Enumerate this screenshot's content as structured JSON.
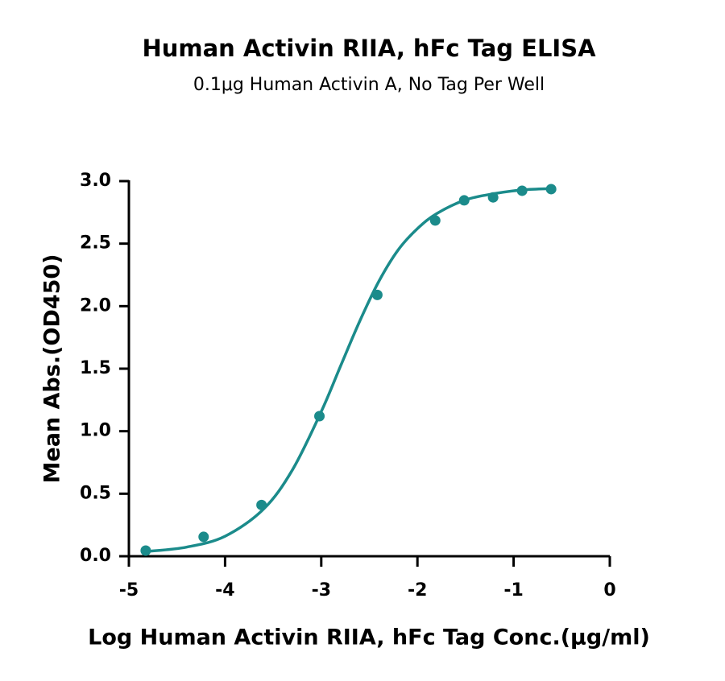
{
  "chart_data": {
    "type": "scatter",
    "title": "Human Activin RIIA, hFc Tag ELISA",
    "subtitle": "0.1μg Human Activin A, No Tag Per Well",
    "x_label": "Log Human Activin RIIA, hFc  Tag Conc.(μg/ml)",
    "y_label": "Mean Abs.(OD450)",
    "color": "#1b8b8b",
    "points": {
      "x": [
        -4.825,
        -4.223,
        -3.621,
        -3.019,
        -2.417,
        -1.815,
        -1.514,
        -1.213,
        -0.912,
        -0.61
      ],
      "values": [
        0.045,
        0.155,
        0.41,
        1.12,
        2.09,
        2.685,
        2.846,
        2.87,
        2.923,
        2.936
      ]
    },
    "fit": {
      "x": [
        -4.8,
        -4.4,
        -4.0,
        -3.6,
        -3.3,
        -3.0,
        -2.8,
        -2.6,
        -2.4,
        -2.2,
        -2.0,
        -1.8,
        -1.5,
        -1.2,
        -0.9,
        -0.6
      ],
      "values": [
        0.039,
        0.073,
        0.16,
        0.377,
        0.69,
        1.157,
        1.52,
        1.88,
        2.2,
        2.45,
        2.62,
        2.74,
        2.85,
        2.9,
        2.93,
        2.94
      ]
    },
    "xlim": [
      -5,
      0
    ],
    "xticks": [
      -5,
      -4,
      -3,
      -2,
      -1,
      0
    ],
    "ylim": [
      0,
      3
    ],
    "yticks": [
      {
        "value": 0,
        "label": "0.0"
      },
      0.5,
      {
        "value": 1,
        "label": "1.0"
      },
      1.5,
      {
        "value": 2,
        "label": "2.0"
      },
      2.5,
      {
        "value": 3,
        "label": "3.0"
      }
    ]
  }
}
